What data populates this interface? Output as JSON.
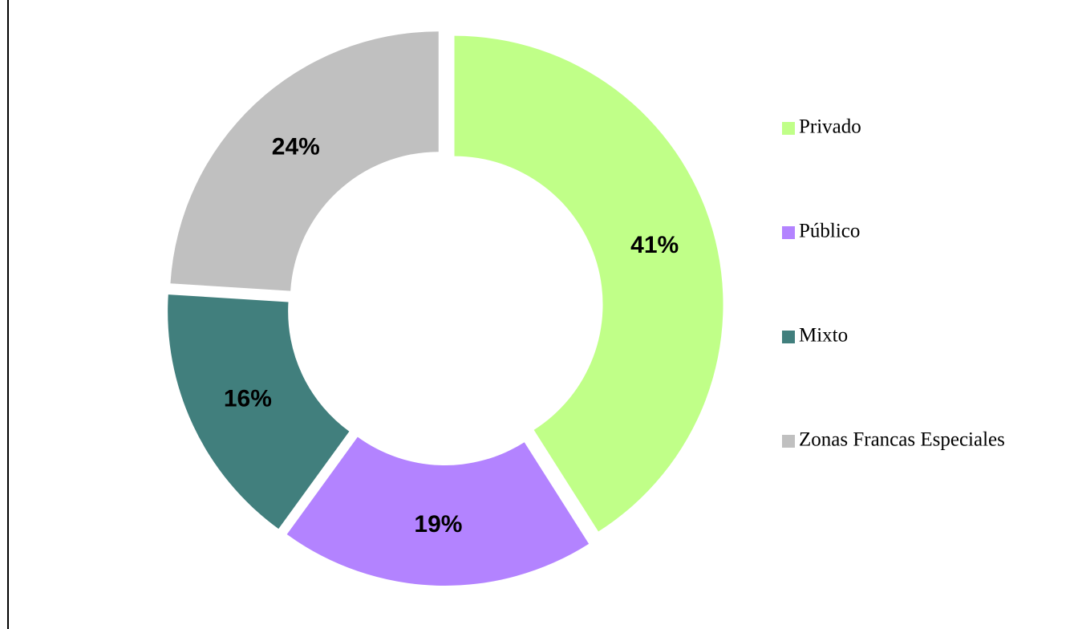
{
  "chart_data": {
    "type": "donut",
    "categories": [
      "Privado",
      "Público",
      "Mixto",
      "Zonas Francas Especiales"
    ],
    "values": [
      41,
      19,
      16,
      24
    ],
    "value_labels": [
      "41%",
      "19%",
      "16%",
      "24%"
    ],
    "colors": [
      "#c0ff88",
      "#b383ff",
      "#417f7d",
      "#c0c0c0"
    ],
    "legend": "right"
  }
}
